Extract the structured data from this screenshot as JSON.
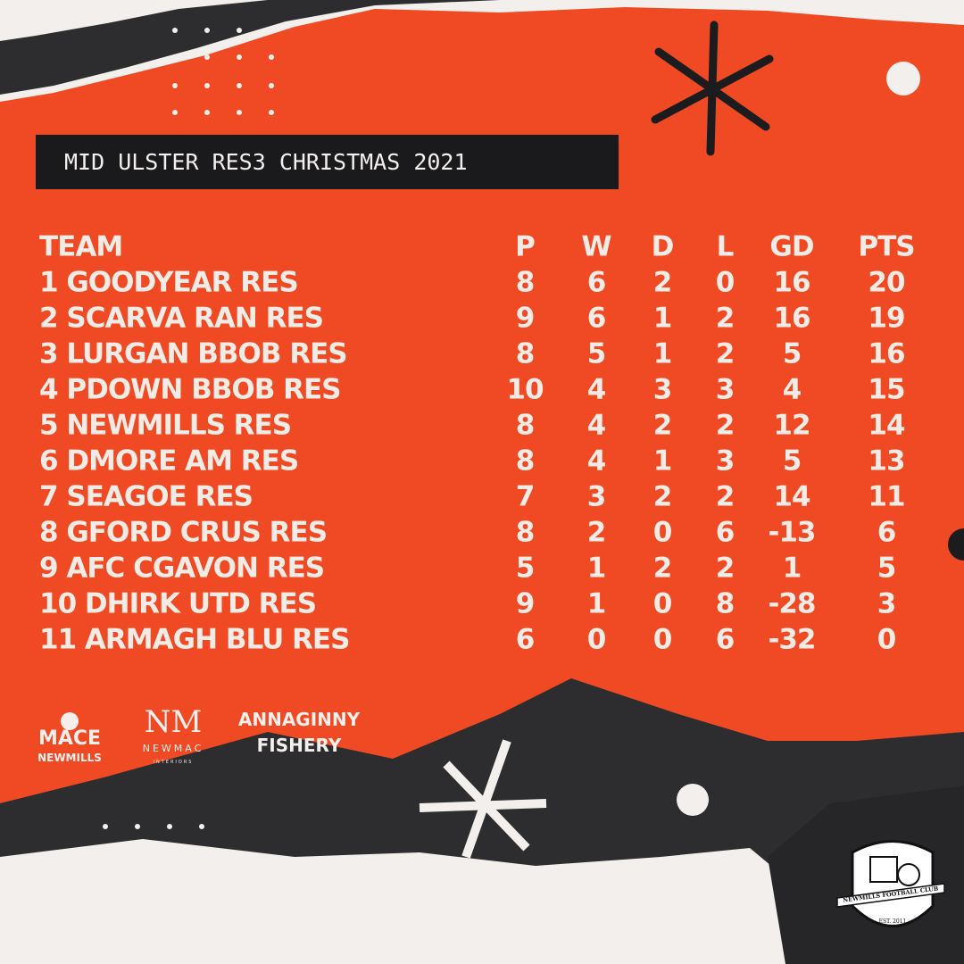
{
  "title": "MID ULSTER RES3 CHRISTMAS 2021",
  "table": {
    "header": [
      "TEAM",
      "P",
      "W",
      "D",
      "L",
      "GD",
      "PTS"
    ],
    "rows": [
      [
        "1 GOODYEAR RES",
        8,
        6,
        2,
        0,
        16,
        20
      ],
      [
        "2 SCARVA RAN RES",
        9,
        6,
        1,
        2,
        16,
        19
      ],
      [
        "3 LURGAN BBOB RES",
        8,
        5,
        1,
        2,
        5,
        16
      ],
      [
        "4 PDOWN BBOB RES",
        10,
        4,
        3,
        3,
        4,
        15
      ],
      [
        "5 NEWMILLS RES",
        8,
        4,
        2,
        2,
        12,
        14
      ],
      [
        "6 DMORE AM RES",
        8,
        4,
        1,
        3,
        5,
        13
      ],
      [
        "7 SEAGOE RES",
        7,
        3,
        2,
        2,
        14,
        11
      ],
      [
        "8 GFORD CRUS RES",
        8,
        2,
        0,
        6,
        -13,
        6
      ],
      [
        "9 AFC CGAVON RES",
        5,
        1,
        2,
        2,
        1,
        5
      ],
      [
        "10 DHIRK UTD RES",
        9,
        1,
        0,
        8,
        -28,
        3
      ],
      [
        "11 ARMAGH BLU RES",
        6,
        0,
        0,
        6,
        -32,
        0
      ]
    ]
  },
  "sponsors": {
    "mace": [
      "MACE",
      "NEWMILLS"
    ],
    "newmac": [
      "NEWMAC",
      "INTERIORS"
    ],
    "fishery": [
      "ANNAGINNY",
      "FISHERY"
    ]
  },
  "badge": {
    "name": "NEWMILLS FOOTBALL CLUB",
    "est": "EST. 2011"
  }
}
